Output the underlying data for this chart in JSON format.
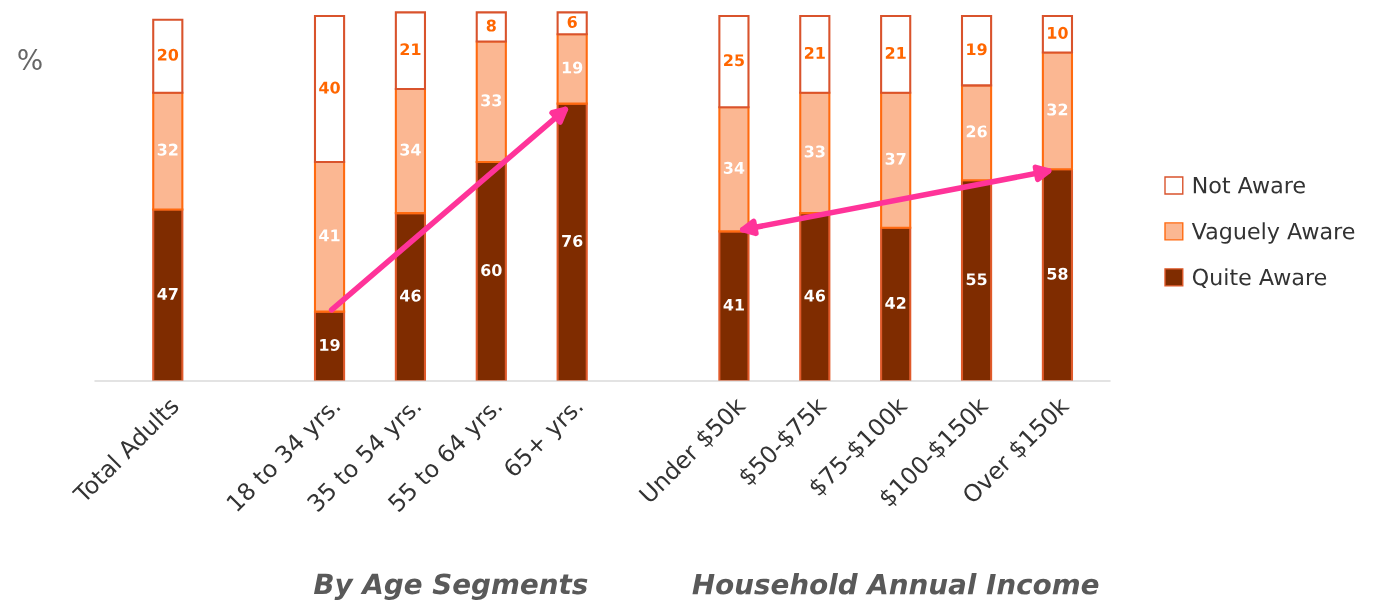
{
  "chart_data": {
    "type": "bar",
    "stacked": true,
    "ylabel": "%",
    "data_labels": true,
    "legend": "right",
    "grid": false,
    "categories": [
      "Total Adults",
      null,
      "18 to 34 yrs.",
      "35 to 54 yrs.",
      "55 to 64 yrs.",
      "65+ yrs.",
      null,
      "Under $50k",
      "$50-$75k",
      "$75-$100k",
      "$100-$150k",
      "Over $150k"
    ],
    "series": [
      {
        "name": "Quite Aware",
        "color": "#7f2c00",
        "values": [
          47,
          null,
          19,
          46,
          60,
          76,
          null,
          41,
          46,
          42,
          55,
          58
        ]
      },
      {
        "name": "Vaguely Aware",
        "color": "#fbb792",
        "values": [
          32,
          null,
          41,
          34,
          33,
          19,
          null,
          34,
          33,
          37,
          26,
          32
        ]
      },
      {
        "name": "Not Aware",
        "color": "#ffffff",
        "values": [
          20,
          null,
          40,
          21,
          8,
          6,
          null,
          25,
          21,
          21,
          19,
          10
        ]
      }
    ],
    "annotations": [
      "By Age Segments",
      "Household Annual Income"
    ]
  }
}
